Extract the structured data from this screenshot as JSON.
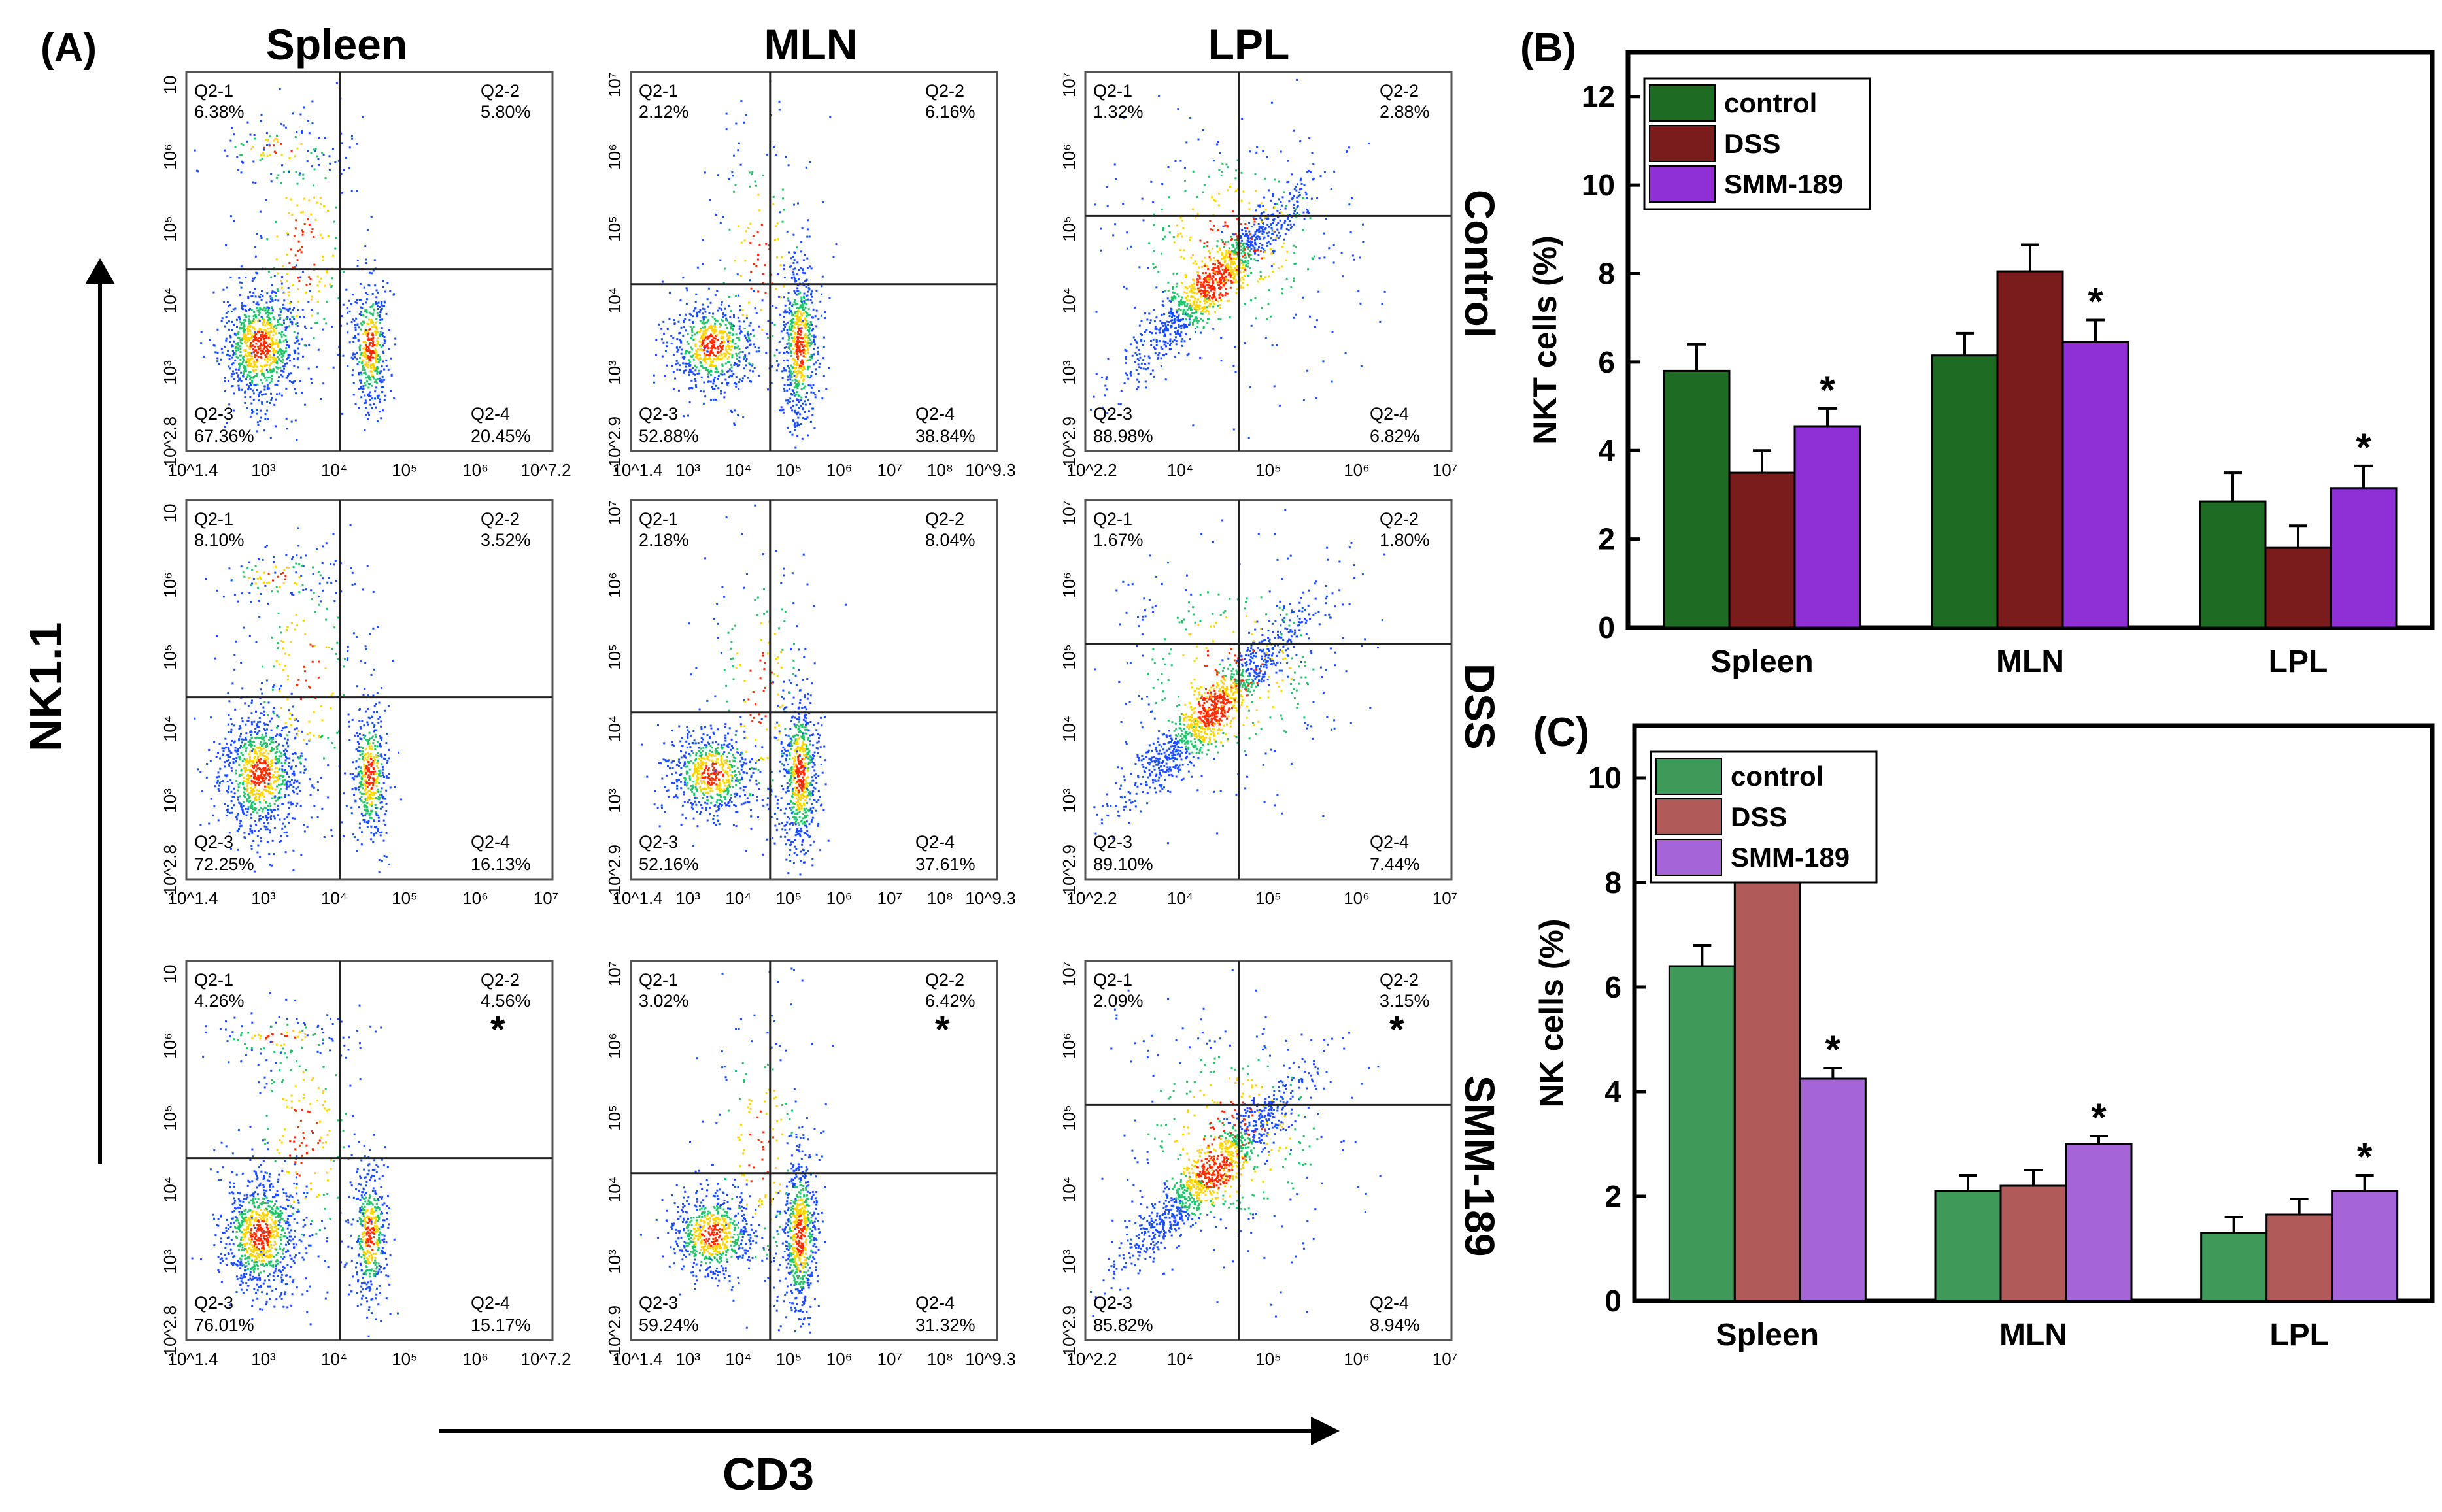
{
  "panel_labels": {
    "a": "(A)",
    "b": "(B)",
    "c": "(C)"
  },
  "columns": [
    "Spleen",
    "MLN",
    "LPL"
  ],
  "rows": [
    "Control",
    "DSS",
    "SMM-189"
  ],
  "y_axis_title": "NK1.1",
  "x_axis_title": "CD3",
  "quadrant_names": [
    "Q2-1",
    "Q2-2",
    "Q2-3",
    "Q2-4"
  ],
  "flow_plots": [
    {
      "row": "Control",
      "col": "Spleen",
      "q1": "6.38%",
      "q2": "5.80%",
      "q3": "67.36%",
      "q4": "20.45%",
      "star": false,
      "yticks": [
        "10",
        "10⁶",
        "10⁵",
        "10⁴",
        "10³",
        "-10^2.8"
      ],
      "xticks": [
        "10^1.4",
        "10³",
        "10⁴",
        "10⁵",
        "10⁶",
        "10^7.2"
      ]
    },
    {
      "row": "Control",
      "col": "MLN",
      "q1": "2.12%",
      "q2": "6.16%",
      "q3": "52.88%",
      "q4": "38.84%",
      "star": false,
      "yticks": [
        "10⁷",
        "10⁶",
        "10⁵",
        "10⁴",
        "10³",
        "-10^2.9"
      ],
      "xticks": [
        "10^1.4",
        "10³",
        "10⁴",
        "10⁵",
        "10⁶",
        "10⁷",
        "10⁸",
        "10^9.3"
      ]
    },
    {
      "row": "Control",
      "col": "LPL",
      "q1": "1.32%",
      "q2": "2.88%",
      "q3": "88.98%",
      "q4": "6.82%",
      "star": false,
      "yticks": [
        "10⁷",
        "10⁶",
        "10⁵",
        "10⁴",
        "10³",
        "-10^2.9"
      ],
      "xticks": [
        "10^2.2",
        "10⁴",
        "10⁵",
        "10⁶",
        "10⁷"
      ]
    },
    {
      "row": "DSS",
      "col": "Spleen",
      "q1": "8.10%",
      "q2": "3.52%",
      "q3": "72.25%",
      "q4": "16.13%",
      "star": false,
      "yticks": [
        "10",
        "10⁶",
        "10⁵",
        "10⁴",
        "10³",
        "-10^2.8"
      ],
      "xticks": [
        "10^1.4",
        "10³",
        "10⁴",
        "10⁵",
        "10⁶",
        "10⁷"
      ]
    },
    {
      "row": "DSS",
      "col": "MLN",
      "q1": "2.18%",
      "q2": "8.04%",
      "q3": "52.16%",
      "q4": "37.61%",
      "star": false,
      "yticks": [
        "10⁷",
        "10⁶",
        "10⁵",
        "10⁴",
        "10³",
        "-10^2.9"
      ],
      "xticks": [
        "10^1.4",
        "10³",
        "10⁴",
        "10⁵",
        "10⁶",
        "10⁷",
        "10⁸",
        "10^9.3"
      ]
    },
    {
      "row": "DSS",
      "col": "LPL",
      "q1": "1.67%",
      "q2": "1.80%",
      "q3": "89.10%",
      "q4": "7.44%",
      "star": false,
      "yticks": [
        "10⁷",
        "10⁶",
        "10⁵",
        "10⁴",
        "10³",
        "-10^2.9"
      ],
      "xticks": [
        "10^2.2",
        "10⁴",
        "10⁵",
        "10⁶",
        "10⁷"
      ]
    },
    {
      "row": "SMM-189",
      "col": "Spleen",
      "q1": "4.26%",
      "q2": "4.56%",
      "q3": "76.01%",
      "q4": "15.17%",
      "star": true,
      "yticks": [
        "10",
        "10⁶",
        "10⁵",
        "10⁴",
        "10³",
        "-10^2.8"
      ],
      "xticks": [
        "10^1.4",
        "10³",
        "10⁴",
        "10⁵",
        "10⁶",
        "10^7.2"
      ]
    },
    {
      "row": "SMM-189",
      "col": "MLN",
      "q1": "3.02%",
      "q2": "6.42%",
      "q3": "59.24%",
      "q4": "31.32%",
      "star": true,
      "yticks": [
        "10⁷",
        "10⁶",
        "10⁵",
        "10⁴",
        "10³",
        "-10^2.9"
      ],
      "xticks": [
        "10^1.4",
        "10³",
        "10⁴",
        "10⁵",
        "10⁶",
        "10⁷",
        "10⁸",
        "10^9.3"
      ]
    },
    {
      "row": "SMM-189",
      "col": "LPL",
      "q1": "2.09%",
      "q2": "3.15%",
      "q3": "85.82%",
      "q4": "8.94%",
      "star": true,
      "yticks": [
        "10⁷",
        "10⁶",
        "10⁵",
        "10⁴",
        "10³",
        "-10^2.9"
      ],
      "xticks": [
        "10^2.2",
        "10⁴",
        "10⁵",
        "10⁶",
        "10⁷"
      ]
    }
  ],
  "colors": {
    "control_b": "#1e6b24",
    "dss_b": "#7a1c1c",
    "smm_b": "#8f2fd6",
    "control_c": "#3f9a5a",
    "dss_c": "#b05a5a",
    "smm_c": "#a565d8",
    "dot_high": "#ff2a00",
    "dot_mid": "#ffd400",
    "dot_low": "#1b4dff"
  },
  "chart_data": [
    {
      "type": "bar",
      "panel": "(B)",
      "title": "",
      "xlabel": "",
      "ylabel": "NKT cells (%)",
      "categories": [
        "Spleen",
        "MLN",
        "LPL"
      ],
      "ylim": [
        0,
        13
      ],
      "yticks": [
        0,
        2,
        4,
        6,
        8,
        10,
        12
      ],
      "legend_position": "top-left",
      "series": [
        {
          "name": "control",
          "values": [
            5.8,
            6.15,
            2.85
          ],
          "errors": [
            0.6,
            0.5,
            0.65
          ]
        },
        {
          "name": "DSS",
          "values": [
            3.5,
            8.05,
            1.8
          ],
          "errors": [
            0.5,
            0.6,
            0.5
          ]
        },
        {
          "name": "SMM-189",
          "values": [
            4.55,
            6.45,
            3.15
          ],
          "errors": [
            0.4,
            0.5,
            0.5
          ]
        }
      ],
      "significance": [
        {
          "category": "Spleen",
          "series": "SMM-189",
          "mark": "*"
        },
        {
          "category": "MLN",
          "series": "SMM-189",
          "mark": "*"
        },
        {
          "category": "LPL",
          "series": "SMM-189",
          "mark": "*"
        }
      ]
    },
    {
      "type": "bar",
      "panel": "(C)",
      "title": "",
      "xlabel": "",
      "ylabel": "NK cells (%)",
      "categories": [
        "Spleen",
        "MLN",
        "LPL"
      ],
      "ylim": [
        0,
        11
      ],
      "yticks": [
        0,
        2,
        4,
        6,
        8,
        10
      ],
      "legend_position": "top-left",
      "series": [
        {
          "name": "control",
          "values": [
            6.4,
            2.1,
            1.3
          ],
          "errors": [
            0.4,
            0.3,
            0.3
          ]
        },
        {
          "name": "DSS",
          "values": [
            8.1,
            2.2,
            1.65
          ],
          "errors": [
            0.3,
            0.3,
            0.3
          ]
        },
        {
          "name": "SMM-189",
          "values": [
            4.25,
            3.0,
            2.1
          ],
          "errors": [
            0.2,
            0.15,
            0.3
          ]
        }
      ],
      "significance": [
        {
          "category": "Spleen",
          "series": "SMM-189",
          "mark": "*"
        },
        {
          "category": "MLN",
          "series": "SMM-189",
          "mark": "*"
        },
        {
          "category": "LPL",
          "series": "SMM-189",
          "mark": "*"
        }
      ]
    }
  ]
}
